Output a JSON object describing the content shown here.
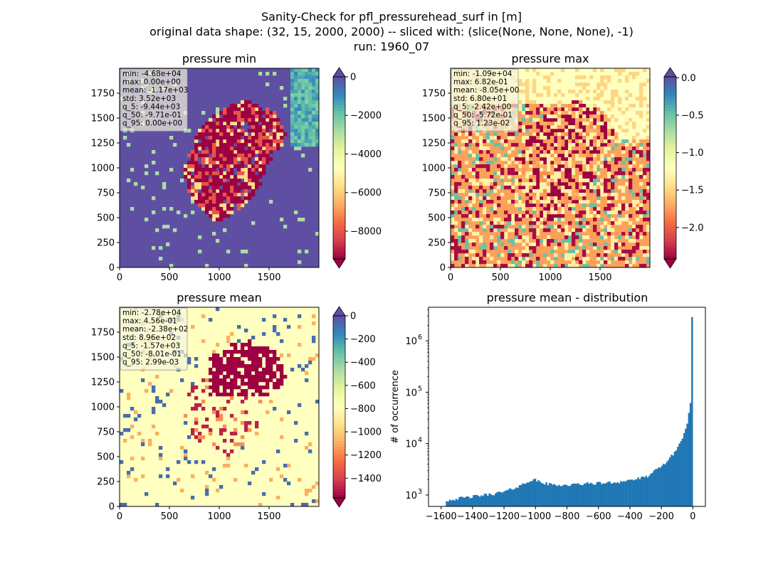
{
  "figure": {
    "suptitle_lines": [
      "Sanity-Check for pfl_pressurehead_surf in [m]",
      "original data shape: (32, 15, 2000, 2000) -- sliced with: (slice(None, None, None), -1)",
      "run: 1960_07"
    ]
  },
  "colors": {
    "spectral": [
      "#9e0142",
      "#d53e4f",
      "#f46d43",
      "#fdae61",
      "#fee08b",
      "#ffffbf",
      "#e6f598",
      "#abdda4",
      "#66c2a5",
      "#3288bd",
      "#5e4fa2"
    ],
    "hist_bar": "#1f77b4",
    "stats_box_bg": "rgba(245,245,222,0.7)"
  },
  "chart_data": [
    {
      "type": "heatmap",
      "title": "pressure min",
      "xticks": [
        "0",
        "500",
        "1000",
        "1500"
      ],
      "yticks": [
        "0",
        "250",
        "500",
        "750",
        "1000",
        "1250",
        "1500",
        "1750"
      ],
      "xlim": [
        0,
        2000
      ],
      "ylim": [
        0,
        2000
      ],
      "colorbar": {
        "ticks": [
          "0",
          "−2000",
          "−4000",
          "−6000",
          "−8000"
        ],
        "tick_values": [
          0,
          -2000,
          -4000,
          -6000,
          -8000
        ],
        "vmin": -9440,
        "vmax": 0,
        "extend": "both",
        "colormap": "Spectral"
      },
      "stats": [
        "min: -4.68e+04",
        "max: 0.00e+00",
        "mean: -1.17e+03",
        "std: 3.52e+03",
        "q_5: -9.44e+03",
        "q_50: -9.71e-01",
        "q_95: 0.00e+00"
      ]
    },
    {
      "type": "heatmap",
      "title": "pressure max",
      "xticks": [
        "0",
        "500",
        "1000",
        "1500"
      ],
      "yticks": [
        "0",
        "250",
        "500",
        "750",
        "1000",
        "1250",
        "1500",
        "1750"
      ],
      "xlim": [
        0,
        2000
      ],
      "ylim": [
        0,
        2000
      ],
      "colorbar": {
        "ticks": [
          "0.0",
          "−0.5",
          "−1.0",
          "−1.5",
          "−2.0"
        ],
        "tick_values": [
          0,
          -0.5,
          -1.0,
          -1.5,
          -2.0
        ],
        "vmin": -2.42,
        "vmax": 0.0123,
        "extend": "both",
        "colormap": "Spectral"
      },
      "stats": [
        "min: -1.09e+04",
        "max: 6.82e-01",
        "mean: -8.05e+00",
        "std: 6.80e+01",
        "q_5: -2.42e+00",
        "q_50: -5.72e-01",
        "q_95: 1.23e-02"
      ]
    },
    {
      "type": "heatmap",
      "title": "pressure mean",
      "xticks": [
        "0",
        "500",
        "1000",
        "1500"
      ],
      "yticks": [
        "0",
        "250",
        "500",
        "750",
        "1000",
        "1250",
        "1500",
        "1750"
      ],
      "xlim": [
        0,
        2000
      ],
      "ylim": [
        0,
        2000
      ],
      "colorbar": {
        "ticks": [
          "0",
          "−200",
          "−400",
          "−600",
          "−800",
          "−1000",
          "−1200",
          "−1400"
        ],
        "tick_values": [
          0,
          -200,
          -400,
          -600,
          -800,
          -1000,
          -1200,
          -1400
        ],
        "vmin": -1570,
        "vmax": 0.003,
        "extend": "both",
        "colormap": "Spectral"
      },
      "stats": [
        "min: -2.78e+04",
        "max: 4.56e-01",
        "mean: -2.38e+02",
        "std: 8.96e+02",
        "q_5: -1.57e+03",
        "q_50: -8.01e-01",
        "q_95: 2.99e-03"
      ]
    },
    {
      "type": "bar",
      "title": "pressure mean - distribution",
      "ylabel": "# of occurrence",
      "yscale": "log",
      "xticks": [
        "−1600",
        "−1400",
        "−1200",
        "−1000",
        "−800",
        "−600",
        "−400",
        "−200",
        "0"
      ],
      "xtick_values": [
        -1600,
        -1400,
        -1200,
        -1000,
        -800,
        -600,
        -400,
        -200,
        0
      ],
      "xlim": [
        -1680,
        80
      ],
      "yticks": [
        "10",
        "10",
        "10",
        "10"
      ],
      "ytick_exponents": [
        "3",
        "4",
        "5",
        "6"
      ],
      "ytick_values": [
        1000,
        10000,
        100000,
        1000000
      ],
      "ylim": [
        600,
        4500000
      ],
      "bins": {
        "start": -1570,
        "end": 0,
        "count": 156
      },
      "profile": [
        [
          -1570,
          780
        ],
        [
          -1500,
          850
        ],
        [
          -1400,
          930
        ],
        [
          -1300,
          1020
        ],
        [
          -1200,
          1150
        ],
        [
          -1100,
          1500
        ],
        [
          -1040,
          1900
        ],
        [
          -1000,
          1950
        ],
        [
          -950,
          1700
        ],
        [
          -900,
          1600
        ],
        [
          -800,
          1550
        ],
        [
          -700,
          1650
        ],
        [
          -600,
          1700
        ],
        [
          -500,
          1750
        ],
        [
          -400,
          1950
        ],
        [
          -300,
          2200
        ],
        [
          -250,
          2800
        ],
        [
          -200,
          3600
        ],
        [
          -150,
          5000
        ],
        [
          -100,
          8000
        ],
        [
          -60,
          14000
        ],
        [
          -40,
          22000
        ],
        [
          -25,
          38000
        ],
        [
          -15,
          60000
        ],
        [
          -10,
          40000
        ],
        [
          -5,
          35000
        ],
        [
          0,
          2900000
        ]
      ]
    }
  ]
}
